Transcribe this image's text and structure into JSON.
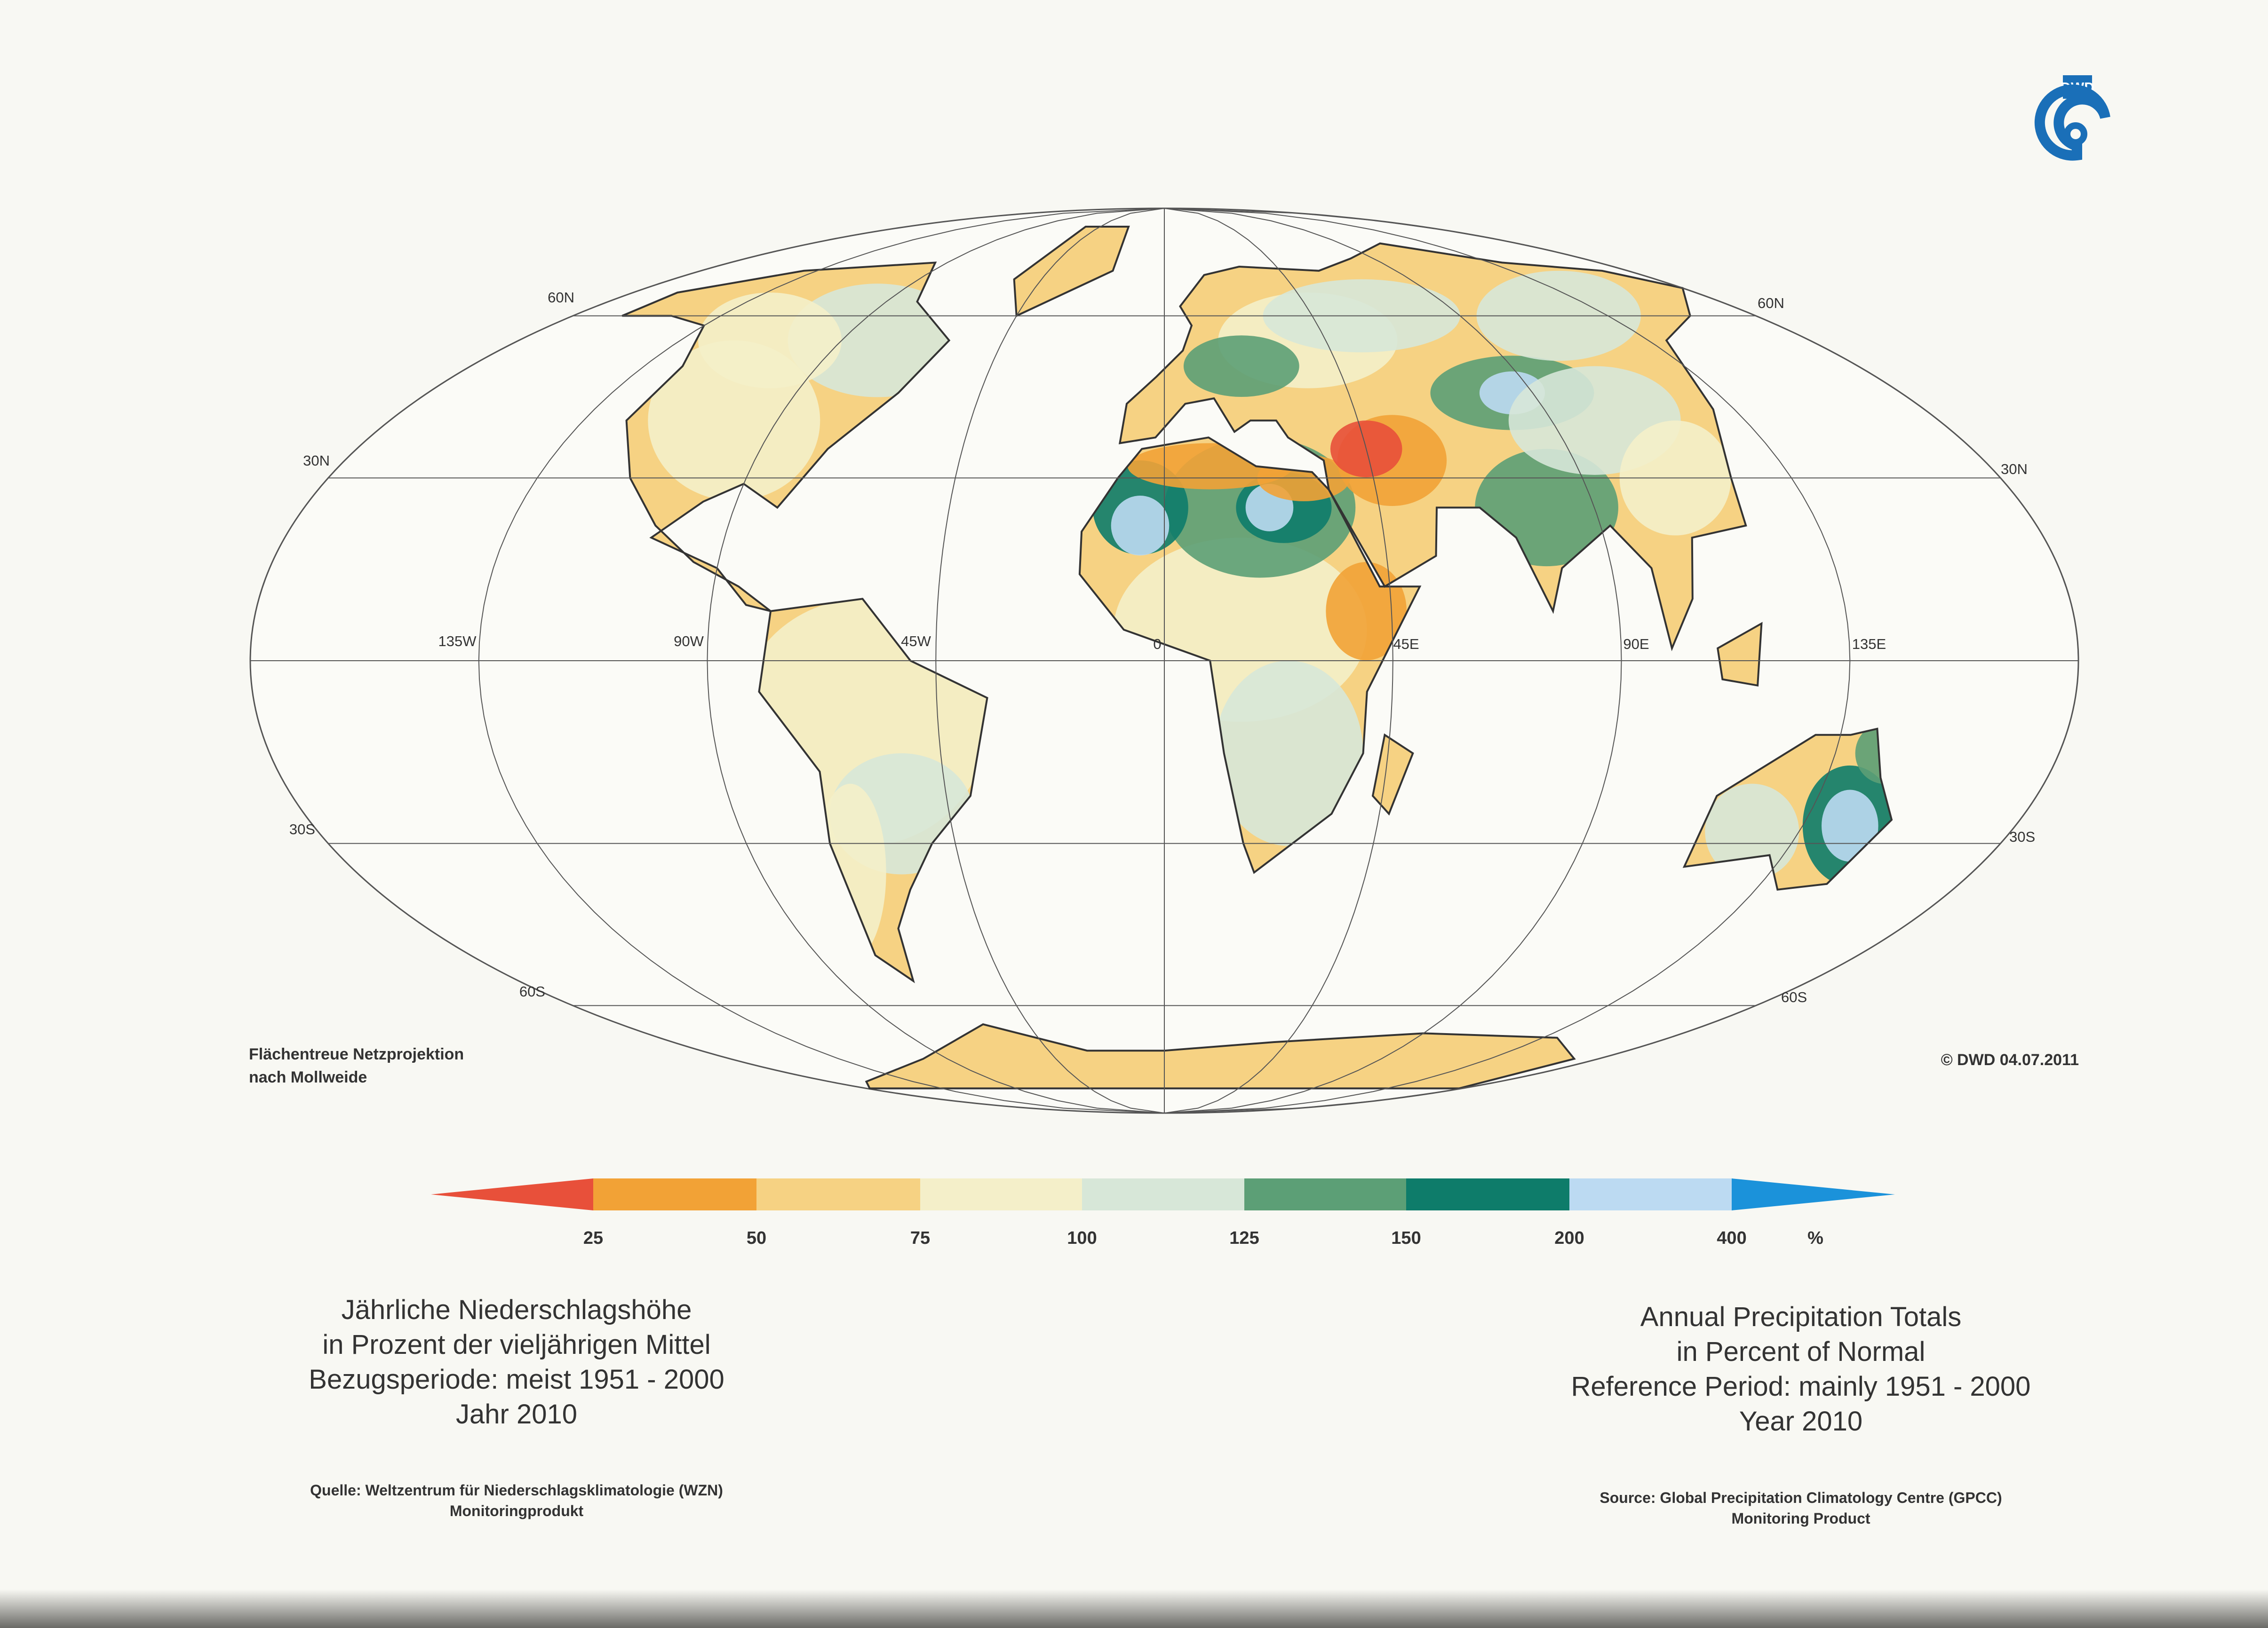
{
  "logo": "DWD",
  "graticule_labels": [
    "60N",
    "60N",
    "30N",
    "30N",
    "135W",
    "90W",
    "45W",
    "0",
    "45E",
    "90E",
    "135E",
    "30S",
    "30S",
    "60S",
    "60S"
  ],
  "projection_note": [
    "Flächentreue Netzprojektion",
    "nach Mollweide"
  ],
  "copyright": "© DWD 04.07.2011",
  "legend": {
    "colors": [
      "#e8503a",
      "#f2a236",
      "#f6d283",
      "#f4efc9",
      "#d7e7d8",
      "#5c9f76",
      "#0e7c6a",
      "#bcdaf2",
      "#1b92da"
    ],
    "ticks": [
      25,
      50,
      75,
      100,
      125,
      150,
      200,
      400
    ],
    "unit": "%"
  },
  "title_de": [
    "Jährliche Niederschlagshöhe",
    "in Prozent der vieljährigen Mittel",
    "Bezugsperiode: meist 1951 - 2000",
    "Jahr 2010"
  ],
  "source_de": [
    "Quelle: Weltzentrum für Niederschlagsklimatologie (WZN)",
    "Monitoringprodukt"
  ],
  "title_en": [
    "Annual Precipitation Totals",
    "in Percent of Normal",
    "Reference Period: mainly 1951 - 2000",
    "Year 2010"
  ],
  "source_en": [
    "Source: Global Precipitation Climatology Centre (GPCC)",
    "Monitoring Product"
  ]
}
